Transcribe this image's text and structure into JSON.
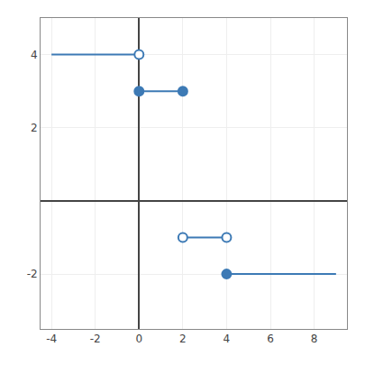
{
  "chart_data": {
    "type": "line",
    "color": "#3d7ab5",
    "series": [
      {
        "type": "line",
        "x": [
          -4,
          0
        ],
        "values": [
          4,
          4
        ]
      },
      {
        "type": "line",
        "x": [
          0,
          2
        ],
        "values": [
          3,
          3
        ]
      },
      {
        "type": "line",
        "x": [
          2,
          4
        ],
        "values": [
          -1,
          -1
        ]
      },
      {
        "type": "line",
        "x": [
          4,
          9
        ],
        "values": [
          -2,
          -2
        ]
      },
      {
        "type": "scatter",
        "marker": "open",
        "x": [
          0,
          2,
          4
        ],
        "values": [
          4,
          -1,
          -1
        ]
      },
      {
        "type": "scatter",
        "marker": "filled",
        "x": [
          0,
          2,
          4
        ],
        "values": [
          3,
          3,
          -2
        ]
      }
    ],
    "xlim": [
      -4.5,
      9.5
    ],
    "ylim": [
      -3.5,
      5.0
    ],
    "xticks": [
      -4,
      -2,
      0,
      2,
      4,
      6,
      8
    ],
    "yticks": [
      -2,
      2,
      4
    ],
    "grid": true
  }
}
